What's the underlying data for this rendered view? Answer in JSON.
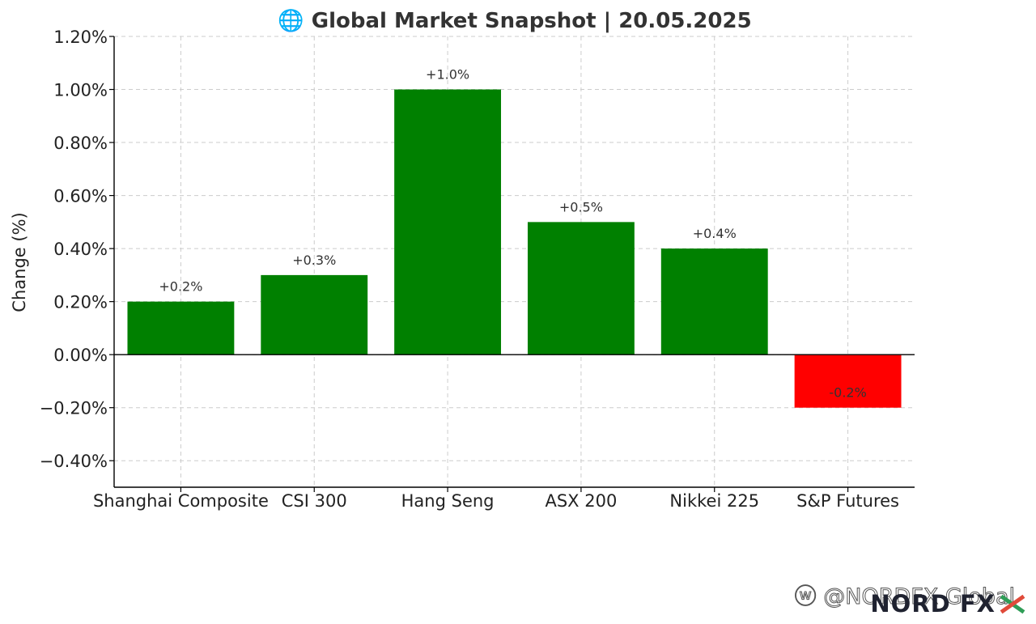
{
  "chart_data": {
    "type": "bar",
    "title": "🌐 Global Market Snapshot | 20.05.2025",
    "ylabel": "Change (%)",
    "xlabel": "",
    "categories": [
      "Shanghai Composite",
      "CSI 300",
      "Hang Seng",
      "ASX 200",
      "Nikkei 225",
      "S&P Futures"
    ],
    "values": [
      0.2,
      0.3,
      1.0,
      0.5,
      0.4,
      -0.2
    ],
    "data_labels": [
      "+0.2%",
      "+0.3%",
      "+1.0%",
      "+0.5%",
      "+0.4%",
      "-0.2%"
    ],
    "ylim": [
      -0.5,
      1.2
    ],
    "yticks": [
      1.2,
      1.0,
      0.8,
      0.6,
      0.4,
      0.2,
      0.0,
      -0.2,
      -0.4
    ],
    "ytick_labels": [
      "1.20%",
      "1.00%",
      "0.80%",
      "0.60%",
      "0.40%",
      "0.20%",
      "0.00%",
      "−0.20%",
      "−0.40%"
    ],
    "grid": true,
    "colors": {
      "positive": "#008000",
      "negative": "#ff0000"
    }
  },
  "watermark": {
    "weibo_text": "@NORDFX Global",
    "logo_text": "NORD FX"
  }
}
